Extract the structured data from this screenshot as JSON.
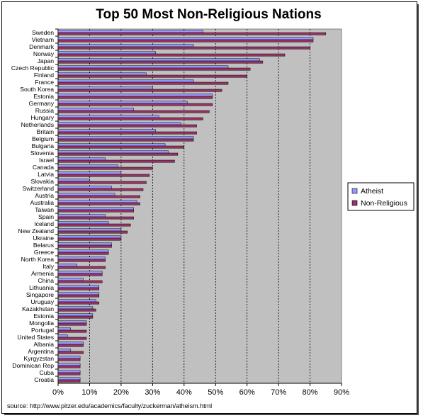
{
  "chart_data": {
    "type": "bar",
    "orientation": "horizontal",
    "title": "Top 50 Most Non-Religious Nations",
    "source": "source: http://www.pitzer.edu/academics/faculty/zuckerman/atheism.html",
    "xlim": [
      0,
      90
    ],
    "x_ticks": [
      "0%",
      "10%",
      "20%",
      "30%",
      "40%",
      "50%",
      "60%",
      "70%",
      "80%",
      "90%"
    ],
    "grid": "vertical dashed",
    "legend_position": "right",
    "colors": {
      "plot_bg": "#C0C0C0",
      "atheist": "#9999FF",
      "non_religious": "#993366"
    },
    "categories": [
      "Sweden",
      "Vietnam",
      "Denmark",
      "Norway",
      "Japan",
      "Czech Republic",
      "Finland",
      "France",
      "South Korea",
      "Estonia",
      "Germany",
      "Russia",
      "Hungary",
      "Netherlands",
      "Britain",
      "Belgium",
      "Bulgaria",
      "Slovenia",
      "Israel",
      "Canada",
      "Latvia",
      "Slovakia",
      "Switzerland",
      "Austria",
      "Australia",
      "Taiwan",
      "Spain",
      "Iceland",
      "New Zealand",
      "Ukraine",
      "Belarus",
      "Greece",
      "North Korea",
      "Italy",
      "Armenia",
      "China",
      "Lithuania",
      "Singapore",
      "Uruguay",
      "Kazakhstan",
      "Estonia",
      "Mongolia",
      "Portugal",
      "United States",
      "Albania",
      "Argentina",
      "Kyrgyzstan",
      "Dominican Rep",
      "Cuba",
      "Croatia"
    ],
    "series": [
      {
        "name": "Atheist",
        "values": [
          46,
          81,
          43,
          31,
          64,
          54,
          28,
          43,
          30,
          49,
          41,
          24,
          32,
          39,
          31,
          43,
          34,
          35,
          15,
          19,
          20,
          10,
          17,
          18,
          25,
          24,
          15,
          16,
          20,
          20,
          17,
          16,
          15,
          6,
          14,
          8,
          13,
          13,
          12,
          11,
          11,
          9,
          4,
          3,
          8,
          4,
          7,
          7,
          7,
          7
        ]
      },
      {
        "name": "Non-Religious",
        "values": [
          85,
          81,
          80,
          72,
          65,
          61,
          60,
          54,
          52,
          49,
          49,
          48,
          46,
          44,
          44,
          43,
          40,
          38,
          37,
          30,
          29,
          28,
          27,
          26,
          26,
          24,
          24,
          23,
          22,
          20,
          17,
          16,
          15,
          15,
          14,
          14,
          13,
          13,
          13,
          12,
          11,
          9,
          9,
          9,
          8,
          8,
          7,
          7,
          7,
          7
        ]
      }
    ]
  }
}
